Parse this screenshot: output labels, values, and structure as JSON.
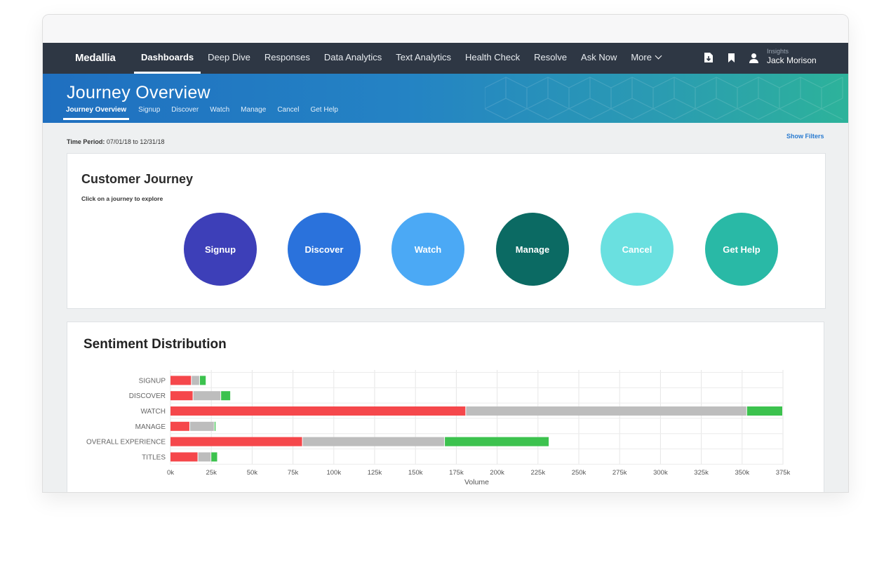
{
  "topnav": {
    "brand": "Medallia",
    "items": [
      "Dashboards",
      "Deep Dive",
      "Responses",
      "Data Analytics",
      "Text Analytics",
      "Health Check",
      "Resolve",
      "Ask Now",
      "More"
    ],
    "active_index": 0,
    "user_sub": "Insights",
    "user_name": "Jack Morison",
    "icons": [
      "export-icon",
      "bookmark-icon",
      "user-icon"
    ]
  },
  "banner": {
    "title": "Journey Overview",
    "tabs": [
      "Journey Overview",
      "Signup",
      "Discover",
      "Watch",
      "Manage",
      "Cancel",
      "Get Help"
    ],
    "active_index": 0
  },
  "filters": {
    "time_period_label": "Time Period:",
    "time_period_value": "07/01/18 to 12/31/18",
    "show_filters": "Show Filters"
  },
  "journey": {
    "title": "Customer Journey",
    "subtitle": "Click on a journey to explore",
    "stages": [
      {
        "label": "Signup",
        "color": "#3d3fb8"
      },
      {
        "label": "Discover",
        "color": "#2a72dc"
      },
      {
        "label": "Watch",
        "color": "#4ba9f5"
      },
      {
        "label": "Manage",
        "color": "#0b6a63"
      },
      {
        "label": "Cancel",
        "color": "#6ae0e0"
      },
      {
        "label": "Get Help",
        "color": "#29b9a6"
      }
    ]
  },
  "sentiment": {
    "title": "Sentiment Distribution"
  },
  "chart_data": {
    "type": "bar",
    "orientation": "horizontal",
    "stacked": true,
    "categories": [
      "SIGNUP",
      "DISCOVER",
      "WATCH",
      "MANAGE",
      "OVERALL EXPERIENCE",
      "TITLES"
    ],
    "series": [
      {
        "color": "#f5474b",
        "values": [
          13000,
          14000,
          181000,
          12000,
          81000,
          17000
        ]
      },
      {
        "color": "#bdbdbd",
        "values": [
          5000,
          17000,
          172000,
          15000,
          87000,
          8000
        ]
      },
      {
        "color": "#3cc24e",
        "values": [
          4000,
          6000,
          22000,
          1000,
          64000,
          4000
        ]
      }
    ],
    "xlabel": "Volume",
    "ylabel": "",
    "xlim": [
      0,
      375000
    ],
    "xticks": [
      "0k",
      "25k",
      "50k",
      "75k",
      "100k",
      "125k",
      "150k",
      "175k",
      "200k",
      "225k",
      "250k",
      "275k",
      "300k",
      "325k",
      "350k",
      "375k"
    ],
    "grid": true
  }
}
